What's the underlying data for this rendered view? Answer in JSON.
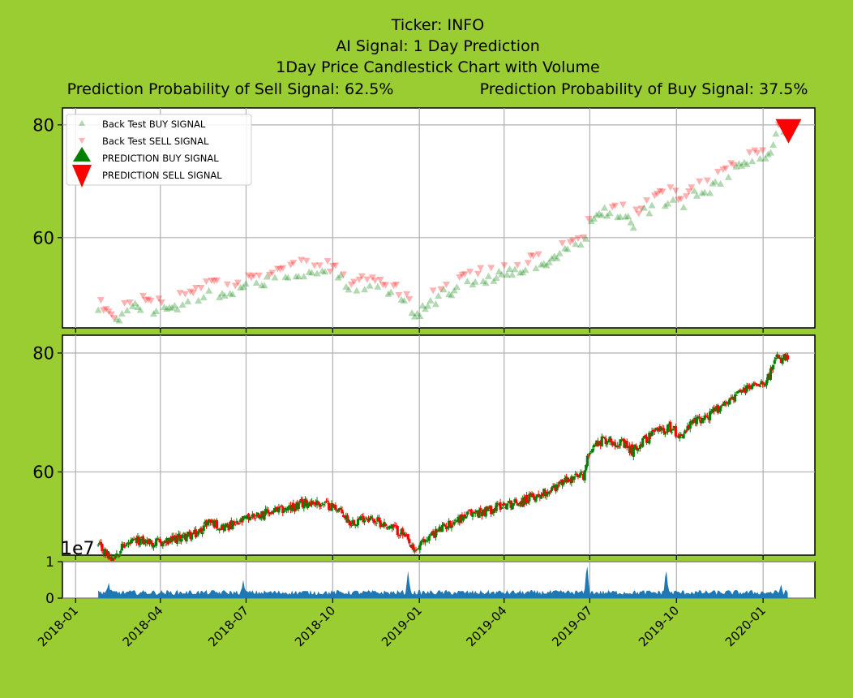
{
  "titles": {
    "line1": "Ticker: INFO",
    "line2": "AI Signal: 1 Day Prediction",
    "line3": "1Day Price Candlestick Chart with Volume",
    "sell_prob": "Prediction Probability of Sell Signal: 62.5%",
    "buy_prob": "Prediction Probability of Buy Signal: 37.5%"
  },
  "legend": [
    "Back Test BUY SIGNAL",
    "Back Test SELL SIGNAL",
    "PREDICTION BUY SIGNAL",
    "PREDICTION SELL SIGNAL"
  ],
  "colors": {
    "background": "#9ACD32",
    "buy": "#008000",
    "sell": "#FF0000",
    "volume": "#1F77B4",
    "grid": "#B0B0B0"
  },
  "volume_exponent_label": "1e7",
  "chart_data": [
    {
      "type": "scatter",
      "panel": "signals",
      "x_range": [
        "2017-12-18",
        "2020-02-25"
      ],
      "ylim": [
        44,
        83
      ],
      "y_ticks": [
        60,
        80
      ],
      "grid": true,
      "legend_position": "top-left",
      "series": [
        {
          "name": "Back Test BUY SIGNAL",
          "marker": "triangle-up",
          "color": "#008000"
        },
        {
          "name": "Back Test SELL SIGNAL",
          "marker": "triangle-down",
          "color": "#FF0000"
        },
        {
          "name": "PREDICTION BUY SIGNAL",
          "marker": "triangle-up-large",
          "color": "#008000"
        },
        {
          "name": "PREDICTION SELL SIGNAL",
          "marker": "triangle-down-large",
          "color": "#FF0000",
          "points": [
            [
              "2020-01-28",
              79
            ]
          ]
        }
      ]
    },
    {
      "type": "candlestick",
      "panel": "price",
      "x_range": [
        "2017-12-18",
        "2020-02-25"
      ],
      "ylim": [
        46,
        83
      ],
      "y_ticks": [
        60,
        80
      ],
      "grid": true,
      "up_color": "#008000",
      "down_color": "#FF0000",
      "close_path": [
        [
          "2018-01-25",
          47.5
        ],
        [
          "2018-02-08",
          45.5
        ],
        [
          "2018-02-20",
          47.5
        ],
        [
          "2018-03-10",
          48.5
        ],
        [
          "2018-03-25",
          48.0
        ],
        [
          "2018-04-10",
          48.2
        ],
        [
          "2018-04-25",
          49.2
        ],
        [
          "2018-05-10",
          49.5
        ],
        [
          "2018-05-22",
          51.8
        ],
        [
          "2018-06-05",
          50.8
        ],
        [
          "2018-06-20",
          51.0
        ],
        [
          "2018-07-05",
          52.5
        ],
        [
          "2018-07-20",
          53.0
        ],
        [
          "2018-08-05",
          53.5
        ],
        [
          "2018-08-20",
          54.0
        ],
        [
          "2018-09-05",
          55.0
        ],
        [
          "2018-09-25",
          54.5
        ],
        [
          "2018-10-05",
          54.0
        ],
        [
          "2018-10-20",
          51.5
        ],
        [
          "2018-11-05",
          52.5
        ],
        [
          "2018-11-20",
          51.5
        ],
        [
          "2018-12-05",
          50.5
        ],
        [
          "2018-12-15",
          49.5
        ],
        [
          "2018-12-26",
          46.5
        ],
        [
          "2019-01-10",
          49.0
        ],
        [
          "2019-01-25",
          50.5
        ],
        [
          "2019-02-10",
          52.0
        ],
        [
          "2019-02-25",
          53.0
        ],
        [
          "2019-03-15",
          53.5
        ],
        [
          "2019-03-30",
          54.5
        ],
        [
          "2019-04-20",
          55.0
        ],
        [
          "2019-05-05",
          56.0
        ],
        [
          "2019-05-20",
          57.0
        ],
        [
          "2019-06-05",
          58.5
        ],
        [
          "2019-06-25",
          59.5
        ],
        [
          "2019-07-01",
          64.0
        ],
        [
          "2019-07-15",
          65.5
        ],
        [
          "2019-08-01",
          65.0
        ],
        [
          "2019-08-15",
          63.5
        ],
        [
          "2019-08-25",
          65.0
        ],
        [
          "2019-09-10",
          67.0
        ],
        [
          "2019-09-25",
          67.5
        ],
        [
          "2019-10-05",
          66.0
        ],
        [
          "2019-10-20",
          68.5
        ],
        [
          "2019-11-05",
          69.5
        ],
        [
          "2019-11-20",
          71.5
        ],
        [
          "2019-12-10",
          73.5
        ],
        [
          "2019-12-25",
          75.0
        ],
        [
          "2020-01-05",
          75.5
        ],
        [
          "2020-01-15",
          79.0
        ],
        [
          "2020-01-28",
          79.0
        ]
      ]
    },
    {
      "type": "area",
      "panel": "volume",
      "x_range": [
        "2017-12-18",
        "2020-02-25"
      ],
      "ylim": [
        0,
        1
      ],
      "y_ticks": [
        0,
        1
      ],
      "y_unit": "1e7",
      "grid": true,
      "x_ticks": [
        "2018-01",
        "2018-04",
        "2018-07",
        "2018-10",
        "2019-01",
        "2019-04",
        "2019-07",
        "2019-10",
        "2020-01"
      ],
      "spikes": [
        [
          "2018-02-05",
          0.45
        ],
        [
          "2018-06-28",
          0.5
        ],
        [
          "2018-12-20",
          0.75
        ],
        [
          "2019-06-28",
          1.0
        ],
        [
          "2019-09-20",
          0.85
        ],
        [
          "2020-01-20",
          0.4
        ]
      ],
      "baseline_level": 0.15
    }
  ]
}
